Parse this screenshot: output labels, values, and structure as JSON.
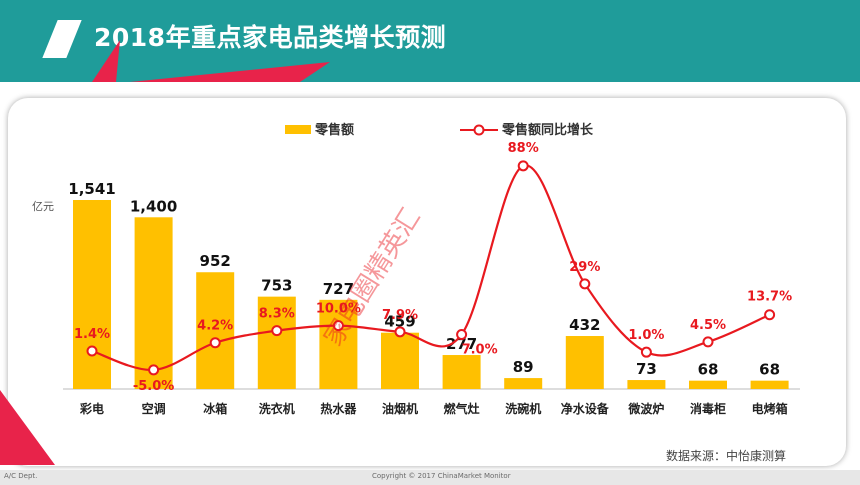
{
  "slide": {
    "title": "2018年重点家电品类增长预测",
    "source_note": "数据来源：中怡康测算",
    "footer_left": "A/C Dept.",
    "footer_center": "Copyright © 2017 ChinaMarket Monitor",
    "watermark": "家电圈精英汇"
  },
  "colors": {
    "header_bg": "#1f9c9a",
    "bar": "#ffc000",
    "line": "#e8191f",
    "accent_red": "#e8234a"
  },
  "chart_data": {
    "type": "bar",
    "unit_label": "亿元",
    "categories": [
      "彩电",
      "空调",
      "冰箱",
      "洗衣机",
      "热水器",
      "油烟机",
      "燃气灶",
      "洗碗机",
      "净水设备",
      "微波炉",
      "消毒柜",
      "电烤箱"
    ],
    "series": [
      {
        "name": "零售额",
        "type": "bar",
        "values": [
          1541,
          1400,
          952,
          753,
          727,
          459,
          277,
          89,
          432,
          73,
          68,
          68
        ],
        "labels": [
          "1,541",
          "1,400",
          "952",
          "753",
          "727",
          "459",
          "277",
          "89",
          "432",
          "73",
          "68",
          "68"
        ]
      },
      {
        "name": "零售额同比增长",
        "type": "line",
        "values": [
          1.4,
          -5.0,
          4.2,
          8.3,
          10.0,
          7.9,
          7.0,
          88,
          29,
          1.0,
          4.5,
          13.7
        ],
        "labels": [
          "1.4%",
          "-5.0%",
          "4.2%",
          "8.3%",
          "10.0%",
          "7.9%",
          "7.0%",
          "88%",
          "29%",
          "1.0%",
          "4.5%",
          "13.7%"
        ]
      }
    ],
    "legend_position": "top",
    "grid": false
  }
}
